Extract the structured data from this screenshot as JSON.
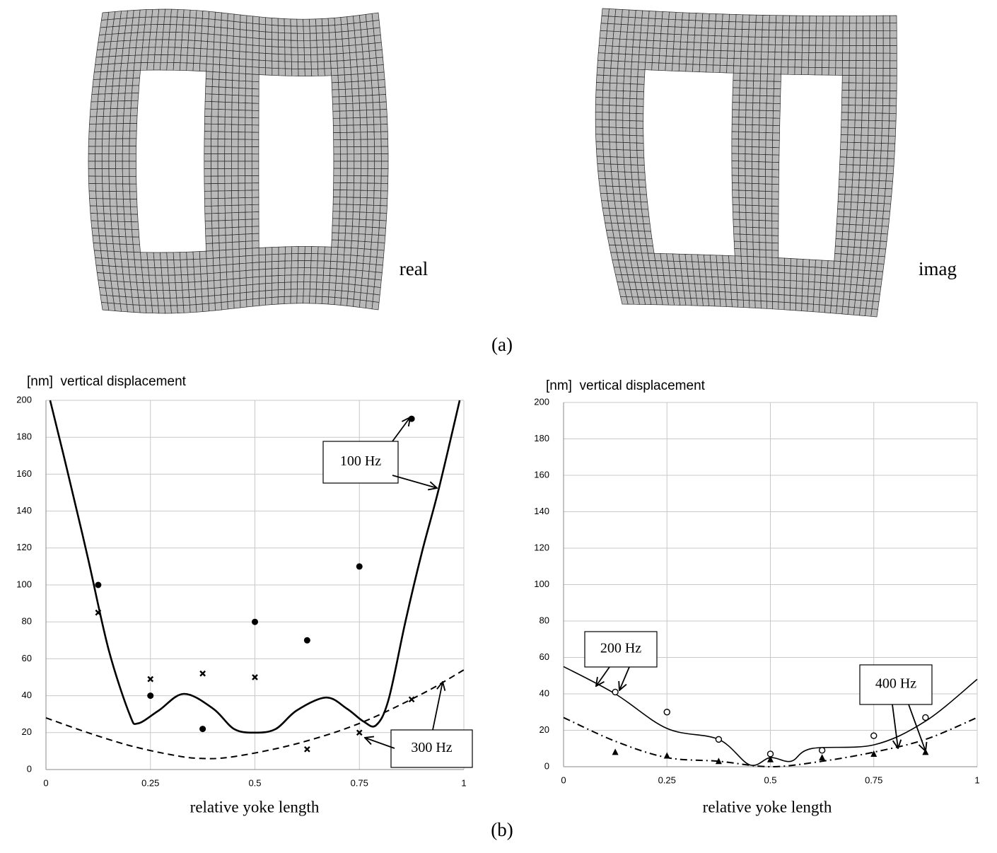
{
  "labels": {
    "real": "real",
    "imag": "imag",
    "a": "(a)",
    "b": "(b)"
  },
  "chart_data": [
    {
      "type": "line",
      "title": "[nm]  vertical displacement",
      "x_label": "relative yoke length",
      "xlim": [
        0,
        1
      ],
      "xticks": [
        0,
        0.25,
        0.5,
        0.75,
        1
      ],
      "ylim": [
        0,
        200
      ],
      "yticks": [
        0,
        20,
        40,
        60,
        80,
        100,
        120,
        140,
        160,
        180,
        200
      ],
      "grid": true,
      "series": [
        {
          "color": "#000000",
          "line_style": "solid",
          "marker": "none",
          "x": [
            0.01,
            0.05,
            0.1,
            0.15,
            0.2,
            0.22,
            0.27,
            0.33,
            0.4,
            0.45,
            0.5,
            0.55,
            0.6,
            0.67,
            0.72,
            0.76,
            0.79,
            0.82,
            0.86,
            0.9,
            0.94,
            0.99
          ],
          "values": [
            200,
            163,
            115,
            65,
            30,
            25,
            32,
            41,
            33,
            22,
            20,
            22,
            32,
            39,
            33,
            26,
            24,
            38,
            80,
            118,
            152,
            200
          ]
        },
        {
          "color": "#000000",
          "line_style": "dashed",
          "marker": "none",
          "x": [
            0,
            0.1,
            0.2,
            0.3,
            0.37,
            0.45,
            0.6,
            0.75,
            0.9,
            1
          ],
          "values": [
            28,
            20,
            13,
            8,
            6,
            7,
            14,
            25,
            41,
            54
          ]
        },
        {
          "color": "#000000",
          "line_style": "none",
          "marker": "dot",
          "x": [
            0.125,
            0.25,
            0.375,
            0.5,
            0.625,
            0.75,
            0.875
          ],
          "values": [
            100,
            40,
            22,
            80,
            70,
            110,
            190
          ]
        },
        {
          "color": "#000000",
          "line_style": "none",
          "marker": "cross",
          "x": [
            0.125,
            0.25,
            0.375,
            0.5,
            0.625,
            0.75,
            0.875
          ],
          "values": [
            85,
            49,
            52,
            50,
            11,
            20,
            38
          ]
        }
      ],
      "annotations": [
        "100 Hz",
        "300 Hz"
      ]
    },
    {
      "type": "line",
      "title": "[nm]  vertical displacement",
      "x_label": "relative yoke length",
      "xlim": [
        0,
        1
      ],
      "xticks": [
        0,
        0.25,
        0.5,
        0.75,
        1
      ],
      "ylim": [
        0,
        200
      ],
      "yticks": [
        0,
        20,
        40,
        60,
        80,
        100,
        120,
        140,
        160,
        180,
        200
      ],
      "grid": true,
      "series": [
        {
          "color": "#000000",
          "line_style": "solid",
          "marker": "none",
          "x": [
            0,
            0.125,
            0.25,
            0.375,
            0.45,
            0.5,
            0.55,
            0.6,
            0.75,
            0.875,
            1
          ],
          "values": [
            55,
            40,
            21,
            15,
            1,
            5,
            3,
            10,
            12,
            25,
            48
          ]
        },
        {
          "color": "#000000",
          "line_style": "dashdot",
          "marker": "none",
          "x": [
            0,
            0.125,
            0.25,
            0.375,
            0.5,
            0.625,
            0.75,
            0.875,
            1
          ],
          "values": [
            27,
            14,
            5,
            3,
            0,
            3,
            8,
            15,
            27
          ]
        },
        {
          "color": "#000000",
          "line_style": "none",
          "marker": "circle",
          "x": [
            0.125,
            0.25,
            0.375,
            0.5,
            0.625,
            0.75,
            0.875
          ],
          "values": [
            41,
            30,
            15,
            7,
            9,
            17,
            27
          ]
        },
        {
          "color": "#000000",
          "line_style": "none",
          "marker": "triangle",
          "x": [
            0.125,
            0.25,
            0.375,
            0.5,
            0.625,
            0.75,
            0.875
          ],
          "values": [
            8,
            6,
            3,
            4,
            5,
            7,
            8
          ]
        }
      ],
      "annotations": [
        "200 Hz",
        "400 Hz"
      ]
    }
  ]
}
